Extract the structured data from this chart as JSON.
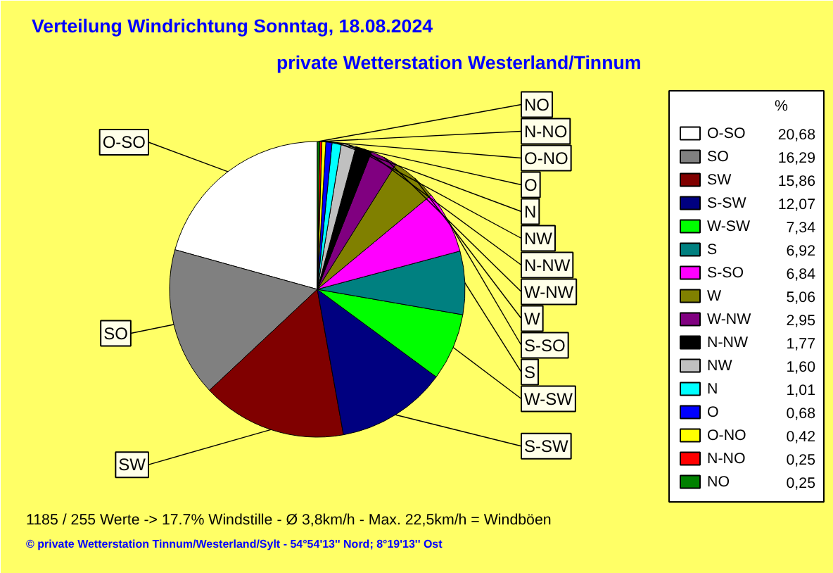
{
  "chart_data": {
    "type": "pie",
    "title": "Verteilung Windrichtung   Sonntag, 18.08.2024",
    "subtitle": "private Wetterstation Westerland/Tinnum",
    "legend_title": "%",
    "legend": "right",
    "categories": [
      "O-SO",
      "SO",
      "SW",
      "S-SW",
      "W-SW",
      "S",
      "S-SO",
      "W",
      "W-NW",
      "N-NW",
      "NW",
      "N",
      "O",
      "O-NO",
      "N-NO",
      "NO"
    ],
    "values": [
      20.68,
      16.29,
      15.86,
      12.07,
      7.34,
      6.92,
      6.84,
      5.06,
      2.95,
      1.77,
      1.6,
      1.01,
      0.68,
      0.42,
      0.25,
      0.25
    ],
    "value_labels": [
      "20,68",
      "16,29",
      "15,86",
      "12,07",
      "7,34",
      "6,92",
      "6,84",
      "5,06",
      "2,95",
      "1,77",
      "1,60",
      "1,01",
      "0,68",
      "0,42",
      "0,25",
      "0,25"
    ],
    "colors": [
      "#ffffff",
      "#808080",
      "#800000",
      "#000080",
      "#00ff00",
      "#008080",
      "#ff00ff",
      "#808000",
      "#800080",
      "#000000",
      "#c0c0c0",
      "#00ffff",
      "#0000ff",
      "#ffff00",
      "#ff0000",
      "#008000"
    ],
    "annotations": [
      "1185 / 255 Werte  -> 17.7% Windstille   -   Ø 3,8km/h  -  Max. 22,5km/h = Windböen",
      "© private Wetterstation Tinnum/Westerland/Sylt   -   54°54'13'' Nord; 8°19'13'' Ost"
    ]
  }
}
